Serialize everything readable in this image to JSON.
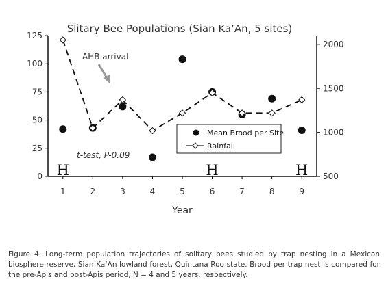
{
  "chart_data": {
    "type": "line",
    "title": "Slitary Bee Populations (Sian Ka’An, 5 sites)",
    "xlabel": "Year",
    "ylabel": "",
    "y2label": "",
    "x": [
      1,
      2,
      3,
      4,
      5,
      6,
      7,
      8,
      9
    ],
    "ylim": [
      0,
      125
    ],
    "y2lim": [
      500,
      2100
    ],
    "yticks": [
      0,
      25,
      50,
      75,
      100,
      125
    ],
    "y2ticks": [
      500,
      1000,
      1500,
      2000
    ],
    "series": [
      {
        "name": "Mean Brood per Site",
        "axis": "left",
        "style": "scatter",
        "marker": "filled-circle",
        "values": [
          42,
          43,
          62,
          17,
          104,
          75,
          55,
          69,
          41
        ]
      },
      {
        "name": "Rainfall",
        "axis": "right",
        "style": "dashed-line",
        "marker": "open-diamond",
        "values": [
          2050,
          1050,
          1370,
          1020,
          1220,
          1450,
          1220,
          1220,
          1370
        ]
      }
    ],
    "annotations": {
      "arrival": "AHB arrival",
      "test": "t-test, P-0.09",
      "h_marks": [
        {
          "x": 1,
          "label": "H"
        },
        {
          "x": 6,
          "label": "H"
        },
        {
          "x": 9,
          "label": "H"
        }
      ]
    },
    "legend_placement": "lower-right",
    "grid": false
  },
  "caption": "Figure 4. Long-term population trajectories of solitary bees studied by trap nesting in a Mexican biosphere reserve, Sian Ka’An lowland forest, Quintana Roo state. Brood per trap nest is compared for the pre-Apis and post-Apis period, N = 4 and 5 years, respectively."
}
